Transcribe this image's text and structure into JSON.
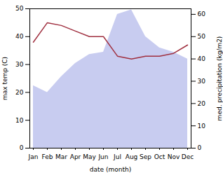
{
  "chart_data": {
    "type": "line",
    "categories": [
      "Jan",
      "Feb",
      "Mar",
      "Apr",
      "May",
      "Jun",
      "Jul",
      "Aug",
      "Sep",
      "Oct",
      "Nov",
      "Dec"
    ],
    "xlabel": "date (month)",
    "ylabel": "max temp (C)",
    "y2label": "med. precipitation (kg/m2)",
    "ylim": [
      0,
      50
    ],
    "yticks": [
      0,
      10,
      20,
      30,
      40,
      50
    ],
    "y2lim": [
      0,
      62.5
    ],
    "y2ticks": [
      0,
      10,
      20,
      30,
      40,
      50,
      60
    ],
    "series": [
      {
        "type": "area",
        "axis": "y2",
        "color": "#c8ccf0",
        "values": [
          28,
          25,
          32,
          38,
          42,
          43,
          60,
          62,
          50,
          45,
          43,
          40
        ]
      },
      {
        "type": "line",
        "color": "#a03040",
        "values": [
          38,
          45,
          44,
          42,
          40,
          40,
          33,
          32,
          33,
          33,
          34,
          37
        ]
      }
    ]
  }
}
